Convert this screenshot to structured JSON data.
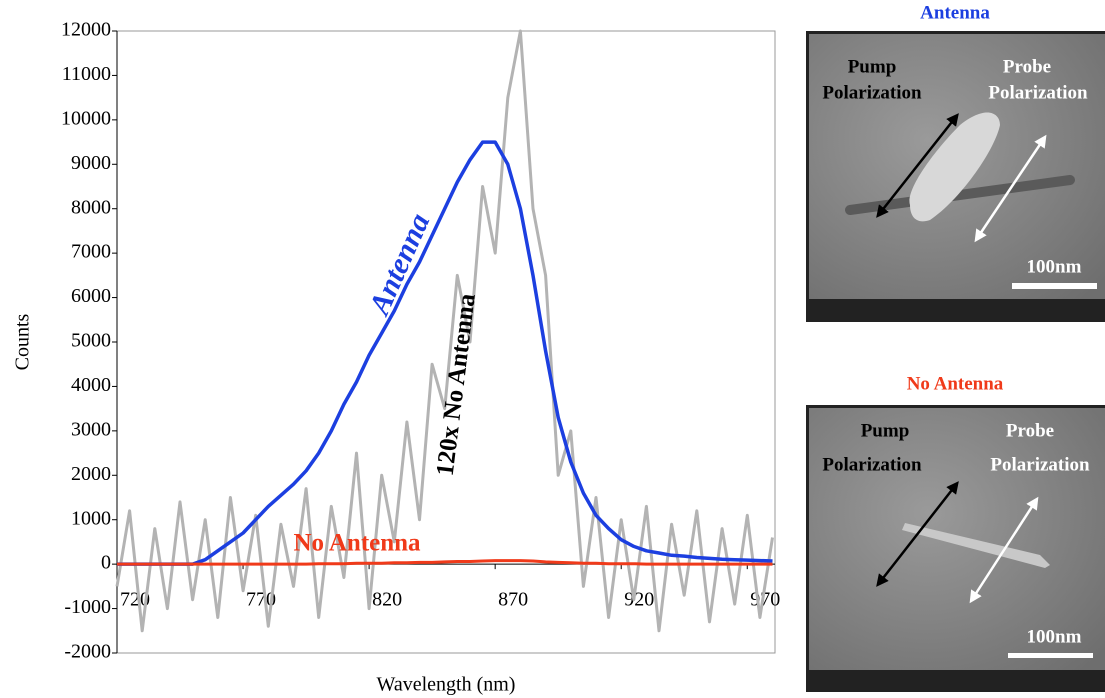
{
  "chart_data": {
    "type": "line",
    "x_label": "Wavelength (nm)",
    "y_label": "Counts",
    "x": [
      720,
      725,
      730,
      735,
      740,
      745,
      750,
      755,
      760,
      765,
      770,
      775,
      780,
      785,
      790,
      795,
      800,
      805,
      810,
      815,
      820,
      825,
      830,
      835,
      840,
      845,
      850,
      855,
      860,
      865,
      870,
      875,
      880,
      885,
      890,
      895,
      900,
      905,
      910,
      915,
      920,
      925,
      930,
      935,
      940,
      945,
      950,
      955,
      960,
      965,
      970,
      975,
      980
    ],
    "series": [
      {
        "name": "120x No Antenna",
        "color": "#b3b3b3",
        "values": [
          -500,
          1200,
          -1500,
          800,
          -1000,
          1400,
          -800,
          1000,
          -1200,
          1500,
          -600,
          1100,
          -1400,
          900,
          -500,
          1700,
          -1200,
          1300,
          -300,
          2500,
          -1000,
          2000,
          500,
          3200,
          1000,
          4500,
          3500,
          6500,
          5000,
          8500,
          7000,
          10500,
          12000,
          8000,
          6500,
          2000,
          3000,
          -500,
          1500,
          -1200,
          1000,
          -800,
          1300,
          -1500,
          900,
          -700,
          1200,
          -1300,
          800,
          -900,
          1100,
          -1200,
          600
        ]
      },
      {
        "name": "Antenna",
        "color": "#1c3fe0",
        "values": [
          0,
          0,
          0,
          0,
          0,
          0,
          0,
          100,
          300,
          500,
          700,
          1000,
          1300,
          1550,
          1800,
          2100,
          2500,
          3000,
          3600,
          4100,
          4700,
          5200,
          5700,
          6300,
          6800,
          7400,
          8000,
          8600,
          9100,
          9500,
          9500,
          9000,
          8000,
          6500,
          4800,
          3300,
          2300,
          1600,
          1100,
          800,
          550,
          400,
          300,
          250,
          200,
          180,
          150,
          130,
          110,
          100,
          90,
          80,
          70
        ]
      },
      {
        "name": "No Antenna",
        "color": "#f03a1a",
        "values": [
          0,
          0,
          0,
          0,
          0,
          0,
          0,
          0,
          0,
          0,
          0,
          0,
          0,
          0,
          0,
          0,
          10,
          10,
          10,
          20,
          20,
          20,
          30,
          30,
          40,
          40,
          50,
          60,
          60,
          70,
          80,
          80,
          80,
          70,
          50,
          40,
          30,
          20,
          20,
          10,
          10,
          10,
          0,
          0,
          0,
          0,
          0,
          0,
          0,
          0,
          0,
          0,
          0
        ]
      }
    ],
    "xlim": [
      720,
      981
    ],
    "xticks": [
      720,
      770,
      820,
      870,
      920,
      970
    ],
    "ylim": [
      -2000,
      12000
    ],
    "yticks": [
      -2000,
      -1000,
      0,
      1000,
      2000,
      3000,
      4000,
      5000,
      6000,
      7000,
      8000,
      9000,
      10000,
      11000,
      12000
    ]
  },
  "images": [
    {
      "title": "Antenna",
      "pump_label": [
        "Pump",
        "Polarization"
      ],
      "probe_label": [
        "Probe",
        "Polarization"
      ],
      "scale_label": "100nm"
    },
    {
      "title": "No Antenna",
      "pump_label": [
        "Pump",
        "Polarization"
      ],
      "probe_label": [
        "Probe",
        "Polarization"
      ],
      "scale_label": "100nm"
    }
  ]
}
